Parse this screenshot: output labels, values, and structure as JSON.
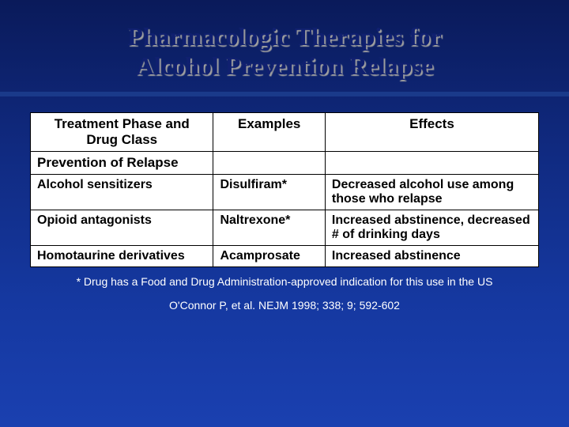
{
  "slide": {
    "title_line1": "Pharmacologic Therapies for",
    "title_line2": "Alcohol Prevention Relapse",
    "title_color": "#102070",
    "title_shadow": "#a0a0a0",
    "title_fontsize": 32,
    "accent_bar_color": "#1a3a8a",
    "background_gradient": [
      "#0a1a5a",
      "#102a80",
      "#1538a0",
      "#1a40b0"
    ]
  },
  "table": {
    "type": "table",
    "background_color": "#ffffff",
    "border_color": "#000000",
    "text_color": "#000000",
    "header_fontsize": 17,
    "body_fontsize": 16,
    "columns": [
      {
        "label": "Treatment Phase and Drug Class",
        "width_pct": 36,
        "align": "center"
      },
      {
        "label": "Examples",
        "width_pct": 22,
        "align": "center"
      },
      {
        "label": "Effects",
        "width_pct": 42,
        "align": "center"
      }
    ],
    "section_row": "Prevention of Relapse",
    "rows": [
      {
        "class": "Alcohol sensitizers",
        "example": "Disulfiram*",
        "effect": "Decreased alcohol use among those who relapse"
      },
      {
        "class": "Opioid antagonists",
        "example": "Naltrexone*",
        "effect": "Increased abstinence, decreased # of drinking days"
      },
      {
        "class": "Homotaurine derivatives",
        "example": "Acamprosate",
        "effect": "Increased abstinence"
      }
    ]
  },
  "footnote": "* Drug has a Food and Drug Administration-approved indication for this use in the US",
  "citation": "O'Connor P, et al. NEJM 1998; 338; 9; 592-602",
  "footnote_color": "#ffffff",
  "footnote_fontsize": 14
}
